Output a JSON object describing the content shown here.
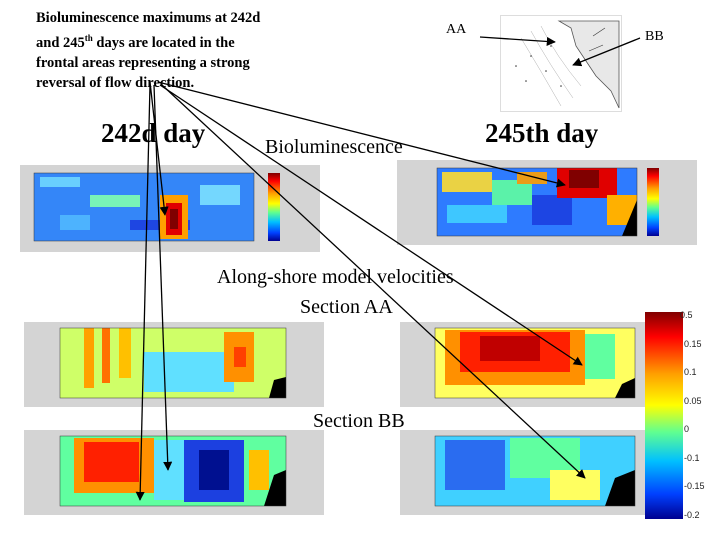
{
  "intro": {
    "line1": "Bioluminescence maximums at 242d",
    "line2_pre": "and 245",
    "line2_sup": "th",
    "line2_post": " days are located in the",
    "line3": "frontal areas representing a strong",
    "line4": "reversal of flow direction."
  },
  "labels": {
    "day242": "242d day",
    "bioluminescence": "Bioluminescence",
    "day245": "245th day",
    "alongshore": "Along-shore model  velocities",
    "section_aa": "Section AA",
    "section_bb": "Section BB",
    "aa": "AA",
    "bb": "BB"
  },
  "colorbar": {
    "ticks": [
      "0.5",
      "0.15",
      "0.1",
      "0.05",
      "0",
      "-0.1",
      "-0.15",
      "-0.2"
    ]
  },
  "colors": {
    "arrow": "#000000",
    "hot": "#c00000",
    "cold": "#1a3fd0"
  }
}
